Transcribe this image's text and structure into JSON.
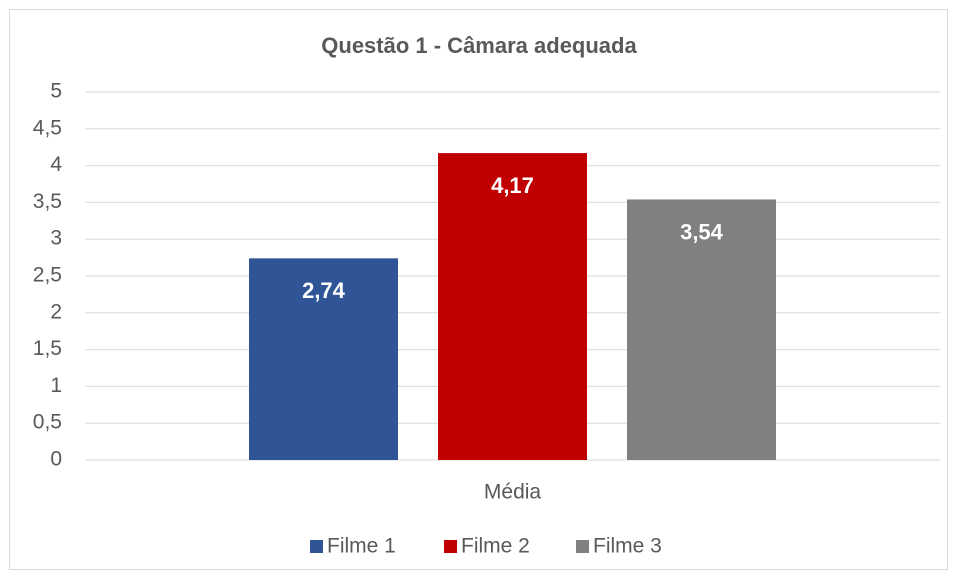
{
  "chart_data": {
    "type": "bar",
    "title": "Questão 1 - Câmara adequada",
    "categories": [
      "Média"
    ],
    "series": [
      {
        "name": "Filme 1",
        "color": "#2f5597",
        "values": [
          2.74
        ],
        "value_labels": [
          "2,74"
        ]
      },
      {
        "name": "Filme 2",
        "color": "#c00000",
        "values": [
          4.17
        ],
        "value_labels": [
          "4,17"
        ]
      },
      {
        "name": "Filme 3",
        "color": "#808080",
        "values": [
          3.54
        ],
        "value_labels": [
          "3,54"
        ]
      }
    ],
    "ylim": [
      0,
      5
    ],
    "yticks": [
      0,
      {
        "value": 0.5,
        "label": "0,5"
      },
      1,
      {
        "value": 1.5,
        "label": "1,5"
      },
      2,
      {
        "value": 2.5,
        "label": "2,5"
      },
      3,
      {
        "value": 3.5,
        "label": "3,5"
      },
      4,
      {
        "value": 4.5,
        "label": "4,5"
      },
      5
    ],
    "grid": true,
    "legend": "bottom"
  }
}
